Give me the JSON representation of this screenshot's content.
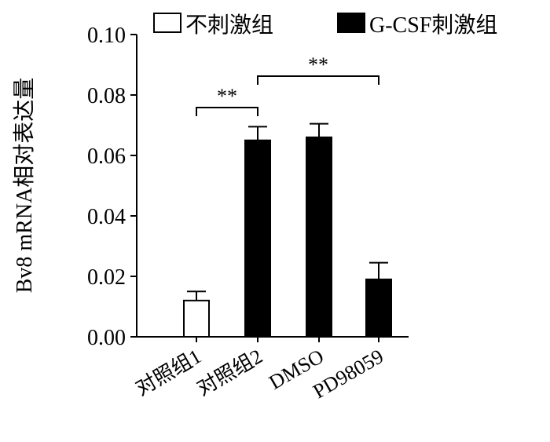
{
  "chart_data": {
    "type": "bar",
    "categories": [
      "对照组1",
      "对照组2",
      "DMSO",
      "PD98059"
    ],
    "series": [
      {
        "name": "不刺激组",
        "color": "#ffffff",
        "values": [
          0.012,
          null,
          null,
          null
        ],
        "errors": [
          0.003,
          null,
          null,
          null
        ]
      },
      {
        "name": "G-CSF刺激组",
        "color": "#000000",
        "values": [
          null,
          0.065,
          0.066,
          0.019
        ],
        "errors": [
          null,
          0.0045,
          0.0045,
          0.0055
        ]
      }
    ],
    "ylabel": "Bv8 mRNA相对表达量",
    "xlabel": "",
    "ylim": [
      0,
      0.1
    ],
    "yticks": [
      "0.00",
      "0.02",
      "0.04",
      "0.06",
      "0.08",
      "0.10"
    ],
    "legend_position": "top",
    "annotations": [
      {
        "text": "**",
        "from": "对照组1",
        "to": "对照组2"
      },
      {
        "text": "**",
        "from": "对照组2",
        "to": "PD98059"
      }
    ],
    "grid": false
  }
}
